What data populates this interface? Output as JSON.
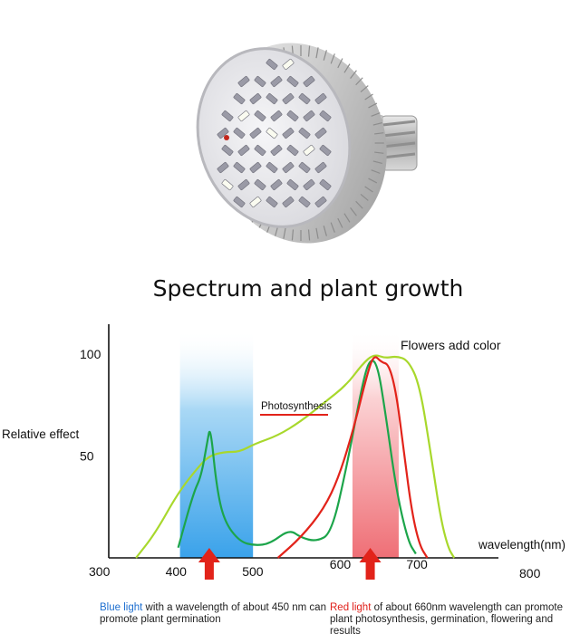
{
  "heading": "Spectrum and plant growth",
  "chart_data": {
    "type": "line",
    "title": "Spectrum and plant growth",
    "xlabel": "wavelength(nm)",
    "ylabel": "Relative effect",
    "xlim": [
      300,
      800
    ],
    "ylim": [
      0,
      100
    ],
    "x_ticks": [
      300,
      400,
      500,
      600,
      700,
      800
    ],
    "y_ticks": [
      50,
      100
    ],
    "bands": [
      {
        "name": "blue",
        "range": [
          400,
          500
        ],
        "color": "#4aa8e8"
      },
      {
        "name": "red",
        "range": [
          625,
          690
        ],
        "color": "#f07a80"
      }
    ],
    "markers": [
      450,
      660
    ],
    "annotations": [
      "Photosynthesis",
      "Flowers add color"
    ],
    "series": [
      {
        "color": "#a8d82c",
        "x": [
          345,
          370,
          400,
          425,
          440,
          460,
          480,
          500,
          530,
          560,
          590,
          620,
          640,
          655,
          670,
          685,
          700,
          715,
          730,
          742,
          752,
          760
        ],
        "y": [
          0,
          12,
          32,
          44,
          50,
          52,
          52,
          56,
          60,
          67,
          76,
          85,
          95,
          100,
          98,
          99,
          97,
          85,
          50,
          20,
          5,
          0
        ]
      },
      {
        "color": "#1ca54a",
        "x": [
          400,
          420,
          430,
          438,
          442,
          450,
          460,
          480,
          500,
          520,
          545,
          560,
          580,
          600,
          620,
          640,
          650,
          660,
          670,
          685,
          700,
          710
        ],
        "y": [
          5,
          32,
          40,
          57,
          65,
          35,
          18,
          8,
          6,
          7,
          14,
          10,
          8,
          12,
          45,
          85,
          98,
          95,
          72,
          32,
          8,
          2
        ]
      },
      {
        "color": "#e2231a",
        "x": [
          530,
          560,
          590,
          610,
          630,
          645,
          655,
          665,
          675,
          685,
          695,
          705,
          715,
          725
        ],
        "y": [
          0,
          10,
          24,
          40,
          65,
          88,
          100,
          96,
          95,
          80,
          50,
          22,
          6,
          0
        ]
      }
    ]
  },
  "captions": {
    "blue_highlight": "Blue light",
    "blue_text": " with a wavelength of about 450 nm can promote plant germination",
    "red_highlight": "Red light",
    "red_text": " of about 660nm wavelength can promote plant photosynthesis, germination, flowering and results"
  }
}
